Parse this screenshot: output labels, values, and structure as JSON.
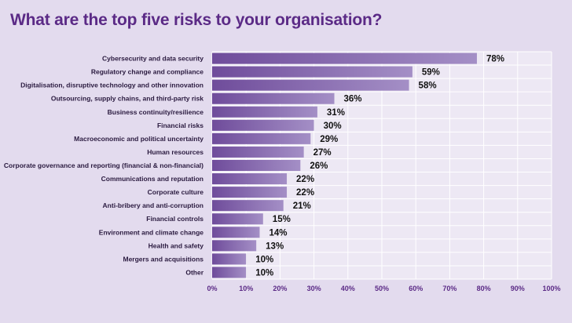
{
  "chart_data": {
    "type": "bar",
    "orientation": "horizontal",
    "title": "What are the top five risks to your organisation?",
    "categories": [
      "Cybersecurity and data security",
      "Regulatory change and compliance",
      "Digitalisation, disruptive technology and other innovation",
      "Outsourcing, supply chains, and third-party risk",
      "Business continuity/resilience",
      "Financial risks",
      "Macroeconomic and political uncertainty",
      "Human resources",
      "Corporate governance and reporting (financial & non-financial)",
      "Communications and reputation",
      "Corporate culture",
      "Anti-bribery and anti-corruption",
      "Financial controls",
      "Environment and climate change",
      "Health and safety",
      "Mergers and acquisitions",
      "Other"
    ],
    "values": [
      78,
      59,
      58,
      36,
      31,
      30,
      29,
      27,
      26,
      22,
      22,
      21,
      15,
      14,
      13,
      10,
      10
    ],
    "value_labels": [
      "78%",
      "59%",
      "58%",
      "36%",
      "31%",
      "30%",
      "29%",
      "27%",
      "26%",
      "22%",
      "22%",
      "21%",
      "15%",
      "14%",
      "13%",
      "10%",
      "10%"
    ],
    "xlim": [
      0,
      100
    ],
    "xticks": [
      "0%",
      "10%",
      "20%",
      "30%",
      "40%",
      "50%",
      "60%",
      "70%",
      "80%",
      "90%",
      "100%"
    ],
    "grid": true,
    "colors": {
      "background": "#e3dbee",
      "plot_background": "#ede8f4",
      "bar_start": "#6f4c9b",
      "bar_end": "#a48fc6",
      "title": "#5b2a86",
      "tick_text": "#5b2a86"
    }
  }
}
